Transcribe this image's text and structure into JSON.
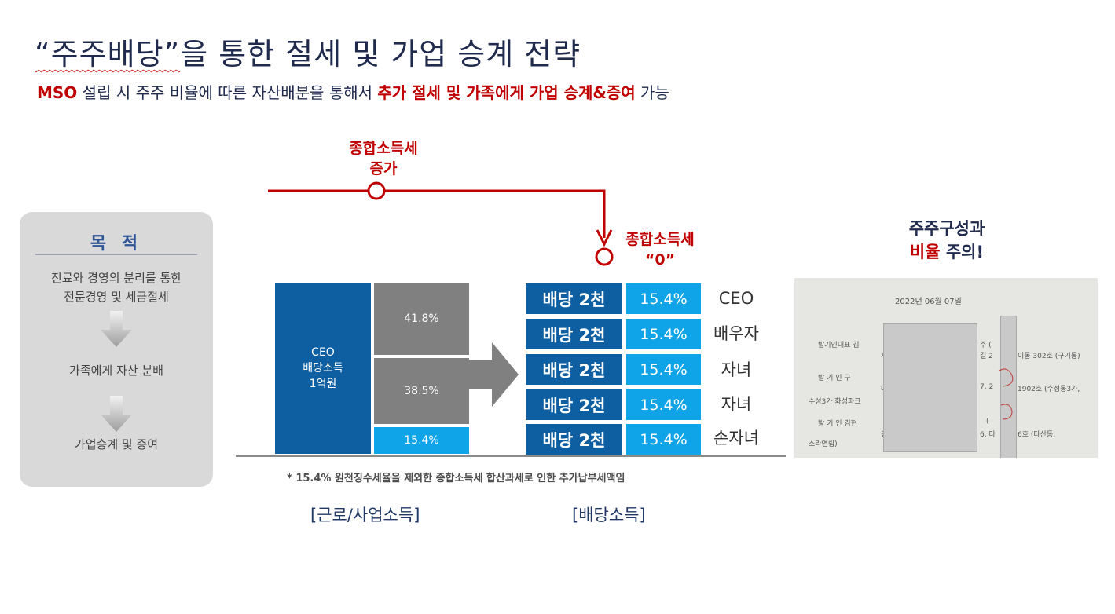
{
  "title": {
    "prefix": "“주주배당”",
    "rest": "을 통한 절세 및 가업 승계 전략"
  },
  "subtitle": {
    "mso": "MSO",
    "middle": " 설립 시 주주 비율에 따른 자산배분을 통해서 ",
    "highlight": "추가 절세 및 가족에게 가업 승계&증여",
    "end": " 가능"
  },
  "purpose": {
    "title": "목 적",
    "step1_line1": "진료와 경영의 분리를 통한",
    "step1_line2": "전문경영 및 세금절세",
    "step2": "가족에게 자산 분배",
    "step3": "가업승계 및 증여"
  },
  "tax_increase": {
    "line1": "종합소득세",
    "line2": "증가"
  },
  "tax_zero": {
    "line1": "종합소득세",
    "line2": "“0”"
  },
  "ceo_bar": {
    "line1": "CEO",
    "line2": "배당소득",
    "line3": "1억원"
  },
  "segments": [
    {
      "label": "41.8%",
      "value": 41.8,
      "color": "#808080"
    },
    {
      "label": "38.5%",
      "value": 38.5,
      "color": "#808080"
    },
    {
      "label": "15.4%",
      "value": 15.4,
      "color": "#0fa4e8"
    }
  ],
  "dividend_rows": [
    {
      "amount": "배당 2천",
      "rate": "15.4%",
      "person": "CEO"
    },
    {
      "amount": "배당 2천",
      "rate": "15.4%",
      "person": "배우자"
    },
    {
      "amount": "배당 2천",
      "rate": "15.4%",
      "person": "자녀"
    },
    {
      "amount": "배당 2천",
      "rate": "15.4%",
      "person": "자녀"
    },
    {
      "amount": "배당 2천",
      "rate": "15.4%",
      "person": "손자녀"
    }
  ],
  "footnote": "* 15.4% 원천징수세율을 제외한 종합소득세 합산과세로 인한 추가납부세액임",
  "label_work": "[근로/사업소득]",
  "label_dividend": "[배당소득]",
  "note": {
    "line1": "주주구성과",
    "red": "비율",
    "line2_rest": " 주의!"
  },
  "document": {
    "date": "2022년 06월 07일",
    "row1_label": "발기인대표  김",
    "row1_a": "서",
    "row1_b": "주   (",
    "row1_c": "길 2",
    "row1_d": "이동 302호 (구기동)",
    "row2_label": "발  기  인  구",
    "row2_a": "대",
    "row2_b": "7, 2",
    "row2_c": "1902호 (수성동3가,",
    "row2_d": "수성3가 화성파크",
    "row3_label": "발  기  인  김현",
    "row3_a": "경기",
    "row3_b": "(",
    "row3_c": "6, 다",
    "row3_d": "6호 (다산동,",
    "row3_e": "소라연립)"
  },
  "colors": {
    "navy": "#1f2a4d",
    "red": "#c00000",
    "blue": "#0e5fa1",
    "cyan": "#0fa4e8",
    "gray": "#808080"
  }
}
